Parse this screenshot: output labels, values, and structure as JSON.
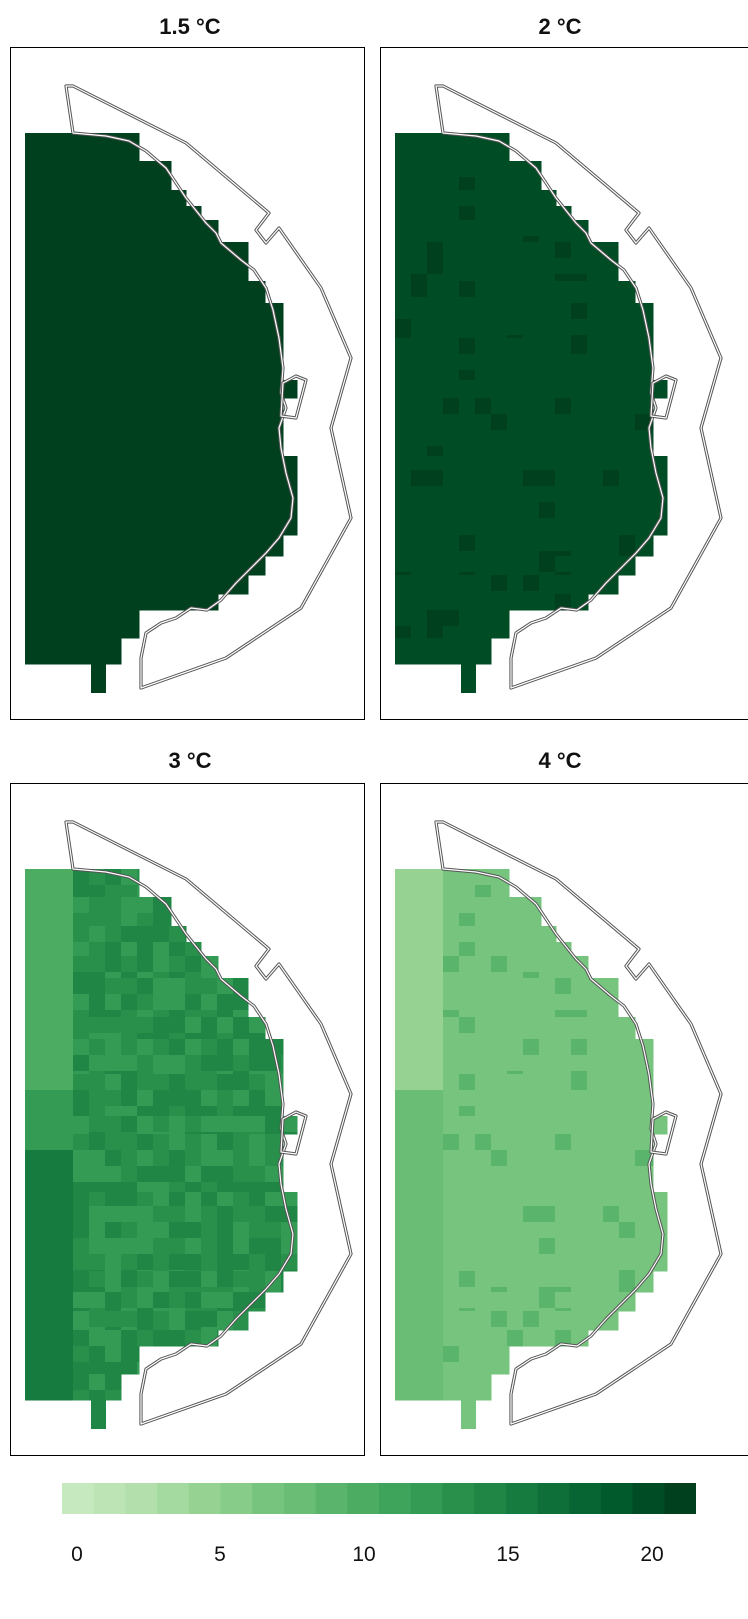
{
  "panels": [
    {
      "title": "1.5 °C"
    },
    {
      "title": "2 °C"
    },
    {
      "title": "3 °C"
    },
    {
      "title": "4 °C"
    }
  ],
  "colorbar": {
    "min": 0,
    "max": 21,
    "ticks": [
      "0",
      "5",
      "10",
      "15",
      "20"
    ],
    "tick_values": [
      0,
      5,
      10,
      15,
      20
    ],
    "colors": [
      "#c7e9c0",
      "#bde4b5",
      "#b2dfab",
      "#a4d99f",
      "#96d393",
      "#87cc88",
      "#77c47e",
      "#69bd74",
      "#5ab46b",
      "#4cac62",
      "#3fa45b",
      "#339b53",
      "#29904c",
      "#1f8645",
      "#167b3f",
      "#0e7038",
      "#066532",
      "#005a2c",
      "#004d25",
      "#00401f"
    ]
  }
}
